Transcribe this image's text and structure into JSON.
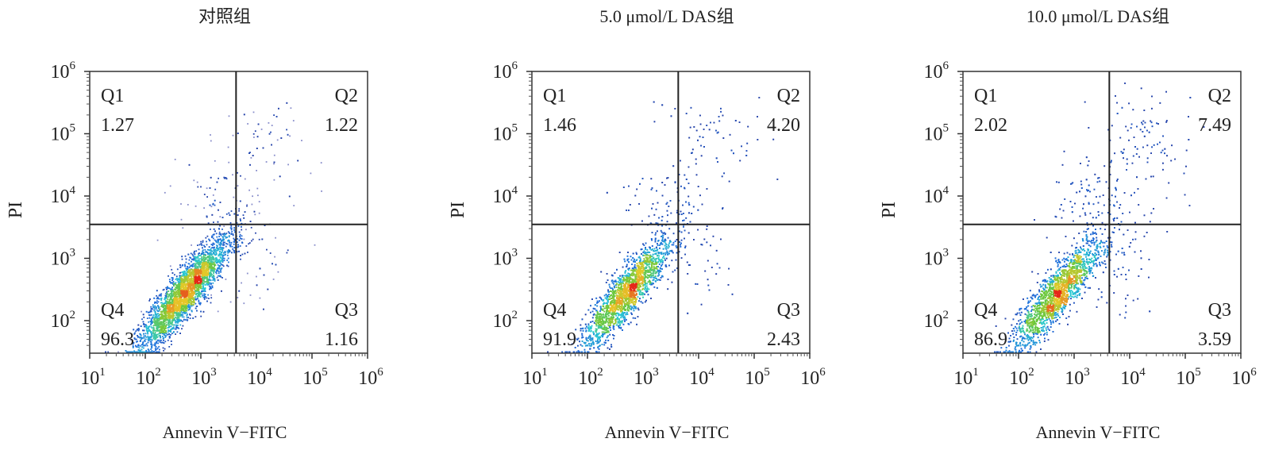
{
  "chart_data": [
    {
      "type": "scatter",
      "title": "对照组",
      "xlabel": "Annevin V−FITC",
      "ylabel": "PI",
      "xscale": "log",
      "yscale": "log",
      "xlim": [
        10,
        1000000
      ],
      "ylim": [
        30,
        1000000
      ],
      "xticks": [
        "10^1",
        "10^2",
        "10^3",
        "10^4",
        "10^5",
        "10^6"
      ],
      "yticks": [
        "10^2",
        "10^3",
        "10^4",
        "10^5",
        "10^6"
      ],
      "gate": {
        "x": 4300,
        "y": 3500
      },
      "quadrants": [
        {
          "name": "Q1",
          "value": "1.27"
        },
        {
          "name": "Q2",
          "value": "1.22"
        },
        {
          "name": "Q3",
          "value": "1.16"
        },
        {
          "name": "Q4",
          "value": "96.3"
        }
      ],
      "grid": false
    },
    {
      "type": "scatter",
      "title": "5.0 μmol/L DAS组",
      "xlabel": "Annevin V−FITC",
      "ylabel": "PI",
      "xscale": "log",
      "yscale": "log",
      "xlim": [
        10,
        1000000
      ],
      "ylim": [
        30,
        1000000
      ],
      "xticks": [
        "10^1",
        "10^2",
        "10^3",
        "10^4",
        "10^5",
        "10^6"
      ],
      "yticks": [
        "10^2",
        "10^3",
        "10^4",
        "10^5",
        "10^6"
      ],
      "gate": {
        "x": 4300,
        "y": 3500
      },
      "quadrants": [
        {
          "name": "Q1",
          "value": "1.46"
        },
        {
          "name": "Q2",
          "value": "4.20"
        },
        {
          "name": "Q3",
          "value": "2.43"
        },
        {
          "name": "Q4",
          "value": "91.9"
        }
      ],
      "grid": false
    },
    {
      "type": "scatter",
      "title": "10.0 μmol/L DAS组",
      "xlabel": "Annevin V−FITC",
      "ylabel": "PI",
      "xscale": "log",
      "yscale": "log",
      "xlim": [
        10,
        1000000
      ],
      "ylim": [
        30,
        1000000
      ],
      "xticks": [
        "10^1",
        "10^2",
        "10^3",
        "10^4",
        "10^5",
        "10^6"
      ],
      "yticks": [
        "10^2",
        "10^3",
        "10^4",
        "10^5",
        "10^6"
      ],
      "gate": {
        "x": 4300,
        "y": 3500
      },
      "quadrants": [
        {
          "name": "Q1",
          "value": "2.02"
        },
        {
          "name": "Q2",
          "value": "7.49"
        },
        {
          "name": "Q3",
          "value": "3.59"
        },
        {
          "name": "Q4",
          "value": "86.9"
        }
      ],
      "grid": false
    }
  ],
  "colors": {
    "density_low": "#2a3aa0",
    "density_mid": "#5fc84a",
    "density_high": "#e8341c",
    "gate_line": "#222222"
  }
}
